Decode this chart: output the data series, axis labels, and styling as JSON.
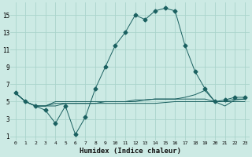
{
  "xlabel": "Humidex (Indice chaleur)",
  "bg_color": "#cceae4",
  "grid_color": "#aad4cc",
  "line_color": "#1a6060",
  "xlim": [
    -0.5,
    23.5
  ],
  "ylim": [
    0.5,
    16.5
  ],
  "yticks": [
    1,
    3,
    5,
    7,
    9,
    11,
    13,
    15
  ],
  "xticks": [
    0,
    1,
    2,
    3,
    4,
    5,
    6,
    7,
    8,
    9,
    10,
    11,
    12,
    13,
    14,
    15,
    16,
    17,
    18,
    19,
    20,
    21,
    22,
    23
  ],
  "series": [
    [
      6,
      5,
      4.5,
      4,
      2.5,
      4.5,
      1.2,
      3.2,
      6.5,
      9.0,
      11.5,
      13.0,
      15.0,
      14.5,
      15.5,
      15.8,
      15.5,
      11.5,
      8.5,
      6.5,
      5.0,
      5.2,
      5.5,
      5.5
    ],
    [
      6,
      5,
      4.5,
      4.5,
      4.5,
      4.8,
      4.8,
      4.8,
      4.8,
      4.8,
      4.8,
      4.8,
      4.8,
      4.8,
      4.8,
      4.9,
      5.0,
      5.0,
      5.0,
      5.0,
      5.0,
      5.0,
      5.0,
      5.0
    ],
    [
      6,
      5,
      4.5,
      4.5,
      4.8,
      4.8,
      4.8,
      4.8,
      4.8,
      5.0,
      5.0,
      5.0,
      5.2,
      5.2,
      5.3,
      5.3,
      5.3,
      5.5,
      5.8,
      6.3,
      5.0,
      4.5,
      5.2,
      5.3
    ],
    [
      6,
      5,
      4.5,
      4.5,
      5.0,
      5.0,
      5.0,
      5.0,
      5.0,
      5.0,
      5.0,
      5.0,
      5.0,
      5.2,
      5.3,
      5.3,
      5.3,
      5.3,
      5.3,
      5.3,
      5.0,
      5.0,
      5.3,
      5.3
    ]
  ],
  "marker_sizes": [
    2.5,
    0,
    0,
    0
  ],
  "marker": "D",
  "lw": [
    0.7,
    0.7,
    0.7,
    0.7
  ]
}
